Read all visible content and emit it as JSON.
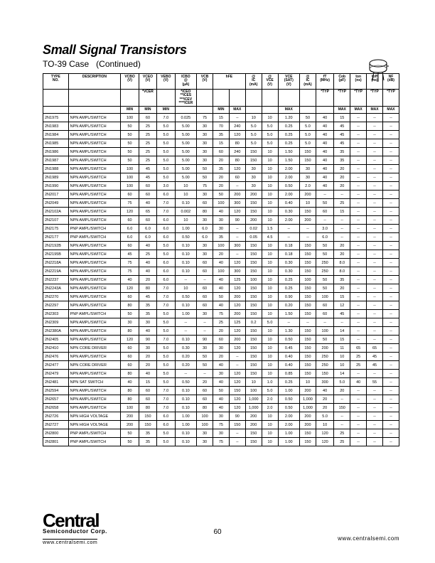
{
  "header": {
    "title": "Small Signal Transistors",
    "subtitle_prefix": "TO-39 Case",
    "subtitle_suffix": "(Continued)"
  },
  "columns_top": [
    "TYPE NO.",
    "DESCRIPTION",
    "VCBO (V)",
    "VCEO (V)",
    "VEBO (V)",
    "ICBO @ (µA)",
    "VCB (V)",
    "hFE",
    "",
    "@ IC (mA)",
    "@ VCE (V)",
    "VCE (SAT) (V)",
    "@ IC (mA)",
    "fT (MHz)",
    "Cob (pF)",
    "ton (ns)",
    "toff (ns)",
    "NF (dB)"
  ],
  "columns_sub": [
    "",
    "",
    "",
    "*VCER",
    "",
    "*ICEO **ICES ***ICEV ****ICER",
    "",
    "",
    "",
    "",
    "",
    "",
    "",
    "*TYP",
    "*TYP",
    "*TYP",
    "*TYP",
    "*TYP"
  ],
  "columns_min": [
    "",
    "",
    "MIN",
    "MIN",
    "MIN",
    "",
    "",
    "MIN",
    "MAX",
    "",
    "",
    "MAX",
    "",
    "",
    "MAX",
    "MAX",
    "MAX",
    "MAX"
  ],
  "rows": [
    [
      "2N1975",
      "NPN AMPL/SWITCH",
      "100",
      "60",
      "7.0",
      "0.025",
      "75",
      "15",
      "--",
      "10",
      "10",
      "1.20",
      "50",
      "40",
      "15",
      "--",
      "--",
      "--"
    ],
    [
      "2N1983",
      "NPN AMPL/SWITCH",
      "50",
      "25",
      "5.0",
      "5.00",
      "30",
      "70",
      "240",
      "5.0",
      "5.0",
      "0.25",
      "5.0",
      "40",
      "45",
      "--",
      "--",
      "--"
    ],
    [
      "2N1984",
      "NPN AMPL/SWITCH",
      "50",
      "25",
      "5.0",
      "5.00",
      "30",
      "35",
      "120",
      "5.0",
      "5.0",
      "0.25",
      "5.0",
      "40",
      "45",
      "--",
      "--",
      "--"
    ],
    [
      "2N1985",
      "NPN AMPL/SWITCH",
      "50",
      "25",
      "5.0",
      "5.00",
      "30",
      "15",
      "80",
      "5.0",
      "5.0",
      "0.25",
      "5.0",
      "40",
      "45",
      "--",
      "--",
      "--"
    ],
    [
      "2N1986",
      "NPN AMPL/SWITCH",
      "50",
      "25",
      "5.0",
      "5.00",
      "30",
      "60",
      "240",
      "150",
      "10",
      "1.50",
      "150",
      "40",
      "35",
      "--",
      "--",
      "--"
    ],
    [
      "2N1987",
      "NPN AMPL/SWITCH",
      "50",
      "25",
      "5.0",
      "5.00",
      "30",
      "20",
      "80",
      "150",
      "10",
      "1.50",
      "150",
      "40",
      "35",
      "--",
      "--",
      "--"
    ],
    [
      "2N1988",
      "NPN AMPL/SWITCH",
      "100",
      "45",
      "5.0",
      "5.00",
      "50",
      "35",
      "120",
      "30",
      "10",
      "2.00",
      "30",
      "40",
      "20",
      "--",
      "--",
      "--"
    ],
    [
      "2N1989",
      "NPN AMPL/SWITCH",
      "100",
      "45",
      "5.0",
      "5.00",
      "50",
      "20",
      "60",
      "30",
      "10",
      "2.00",
      "30",
      "40",
      "20",
      "--",
      "--",
      "--"
    ],
    [
      "2N1990",
      "NPN AMPL/SWITCH",
      "100",
      "60",
      "3.0",
      "10",
      "75",
      "20",
      "--",
      "30",
      "10",
      "0.50",
      "2.0",
      "40",
      "20",
      "--",
      "--",
      "--"
    ],
    [
      "2N2017",
      "NPN AMPL/SWITCH",
      "60",
      "60",
      "6.0",
      "10",
      "30",
      "50",
      "200",
      "200",
      "10",
      "2.00",
      "200",
      "--",
      "--",
      "--",
      "--",
      "--"
    ],
    [
      "2N2049",
      "NPN AMPL/SWITCH",
      "75",
      "40",
      "7.0",
      "0.10",
      "60",
      "100",
      "300",
      "150",
      "10",
      "0.40",
      "10",
      "50",
      "25",
      "--",
      "--",
      "--"
    ],
    [
      "2N2102A",
      "NPN AMPL/SWITCH",
      "120",
      "65",
      "7.0",
      "0.002",
      "80",
      "40",
      "120",
      "150",
      "10",
      "0.30",
      "150",
      "60",
      "15",
      "--",
      "--",
      "--"
    ],
    [
      "2N2107",
      "NPN AMPL/SWITCH",
      "60",
      "60",
      "6.0",
      "10",
      "30",
      "30",
      "90",
      "200",
      "10",
      "2.00",
      "200",
      "--",
      "--",
      "--",
      "--",
      "--"
    ],
    [
      "2N2175",
      "PNP AMPL/SWITCH",
      "6.0",
      "6.0",
      "6.0",
      "1.00",
      "6.0",
      "30",
      "--",
      "0.02",
      "1.5",
      "--",
      "--",
      "3.0",
      "--",
      "--",
      "--",
      "--"
    ],
    [
      "2N2177",
      "PNP AMPL/SWITCH",
      "6.0",
      "6.0",
      "6.0",
      "0.50",
      "6.0",
      "35",
      "--",
      "0.05",
      "4.5",
      "--",
      "--",
      "6.0",
      "--",
      "--",
      "--",
      "--"
    ],
    [
      "2N2192B",
      "NPN AMPL/SWITCH",
      "60",
      "40",
      "5.0",
      "0.10",
      "30",
      "100",
      "300",
      "150",
      "10",
      "0.18",
      "150",
      "50",
      "20",
      "--",
      "--",
      "--"
    ],
    [
      "2N2195B",
      "NPN AMPL/SWITCH",
      "45",
      "25",
      "5.0",
      "0.10",
      "30",
      "20",
      "--",
      "150",
      "10",
      "0.18",
      "150",
      "50",
      "20",
      "--",
      "--",
      "--"
    ],
    [
      "2N2218A",
      "NPN AMPL/SWITCH",
      "75",
      "40",
      "6.0",
      "0.10",
      "60",
      "40",
      "120",
      "150",
      "10",
      "0.30",
      "150",
      "250",
      "8.0",
      "--",
      "--",
      "--"
    ],
    [
      "2N2219A",
      "NPN AMPL/SWITCH",
      "75",
      "40",
      "6.0",
      "0.10",
      "60",
      "100",
      "300",
      "150",
      "10",
      "0.30",
      "150",
      "250",
      "8.0",
      "--",
      "--",
      "--"
    ],
    [
      "2N2237",
      "NPN AMPL/SWITCH",
      "40",
      "20",
      "6.0",
      "--",
      "--",
      "40",
      "125",
      "100",
      "10",
      "0.25",
      "100",
      "50",
      "35",
      "--",
      "--",
      "--"
    ],
    [
      "2N2243A",
      "NPN AMPL/SWITCH",
      "120",
      "80",
      "7.0",
      "10",
      "60",
      "40",
      "120",
      "150",
      "10",
      "0.25",
      "150",
      "50",
      "20",
      "--",
      "--",
      "--"
    ],
    [
      "2N2270",
      "NPN AMPL/SWITCH",
      "60",
      "45",
      "7.0",
      "0.50",
      "60",
      "50",
      "200",
      "150",
      "10",
      "0.90",
      "150",
      "100",
      "15",
      "--",
      "--",
      "--"
    ],
    [
      "2N2297",
      "NPN AMPL/SWITCH",
      "80",
      "35",
      "7.0",
      "0.10",
      "60",
      "40",
      "120",
      "150",
      "10",
      "0.20",
      "150",
      "60",
      "12",
      "--",
      "--",
      "--"
    ],
    [
      "2N2303",
      "PNP AMPL/SWITCH",
      "50",
      "35",
      "5.0",
      "1.00",
      "30",
      "75",
      "200",
      "150",
      "10",
      "1.50",
      "150",
      "60",
      "45",
      "--",
      "--",
      "--"
    ],
    [
      "2N2309",
      "NPN AMPL/SWITCH",
      "30",
      "30",
      "5.0",
      "--",
      "--",
      "25",
      "125",
      "0.2",
      "5.0",
      "--",
      "--",
      "--",
      "--",
      "--",
      "--",
      "--"
    ],
    [
      "2N2380A",
      "NPN AMPL/SWITCH",
      "80",
      "40",
      "5.0",
      "--",
      "--",
      "20",
      "120",
      "150",
      "10",
      "1.30",
      "150",
      "100",
      "14",
      "--",
      "--",
      "--"
    ],
    [
      "2N2405",
      "NPN AMPL/SWITCH",
      "120",
      "90",
      "7.0",
      "0.10",
      "90",
      "60",
      "200",
      "150",
      "10",
      "0.50",
      "150",
      "50",
      "15",
      "--",
      "--",
      "--"
    ],
    [
      "2N2410",
      "NPN CORE DRIVER",
      "60",
      "30",
      "5.0",
      "0.30",
      "30",
      "30",
      "120",
      "150",
      "10",
      "0.45",
      "150",
      "200",
      "11",
      "65",
      "65",
      "--"
    ],
    [
      "2N2476",
      "NPN AMPL/SWITCH",
      "60",
      "20",
      "5.0",
      "0.20",
      "50",
      "20",
      "--",
      "150",
      "10",
      "0.40",
      "150",
      "250",
      "10",
      "25",
      "45",
      "--"
    ],
    [
      "2N2477",
      "NPN CORE DRIVER",
      "60",
      "20",
      "5.0",
      "0.20",
      "50",
      "40",
      "--",
      "150",
      "10",
      "0.40",
      "150",
      "250",
      "10",
      "25",
      "45",
      "--"
    ],
    [
      "2N2479",
      "NPN AMPL/SWITCH",
      "80",
      "40",
      "5.0",
      "--",
      "--",
      "30",
      "120",
      "150",
      "10",
      "0.85",
      "150",
      "150",
      "14",
      "--",
      "--",
      "--"
    ],
    [
      "2N2481",
      "NPN SAT SWITCH",
      "40",
      "15",
      "5.0",
      "0.50",
      "20",
      "40",
      "120",
      "10",
      "1.0",
      "0.25",
      "10",
      "300",
      "5.0",
      "40",
      "55",
      "--"
    ],
    [
      "2N2594",
      "NPN AMPL/SWITCH",
      "80",
      "60",
      "7.0",
      "0.10",
      "60",
      "50",
      "150",
      "100",
      "5.0",
      "1.00",
      "200",
      "40",
      "20",
      "--",
      "--",
      "--"
    ],
    [
      "2N2657",
      "NPN AMPL/SWITCH",
      "80",
      "60",
      "7.0",
      "0.10",
      "60",
      "40",
      "120",
      "1,000",
      "2.0",
      "0.50",
      "1,000",
      "20",
      "--",
      "--",
      "--",
      "--"
    ],
    [
      "2N2658",
      "NPN AMPL/SWITCH",
      "100",
      "80",
      "7.0",
      "0.10",
      "80",
      "40",
      "120",
      "1,000",
      "2.0",
      "0.50",
      "1,000",
      "20",
      "150",
      "--",
      "--",
      "--"
    ],
    [
      "2N2726",
      "NPN HIGH VOLTAGE",
      "200",
      "150",
      "6.0",
      "1.00",
      "100",
      "30",
      "90",
      "200",
      "10",
      "2.00",
      "200",
      "5.0",
      "--",
      "--",
      "--",
      "--"
    ],
    [
      "2N2727",
      "NPN HIGH VOLTAGE",
      "200",
      "150",
      "6.0",
      "1.00",
      "100",
      "75",
      "150",
      "200",
      "10",
      "2.00",
      "200",
      "10",
      "--",
      "--",
      "--",
      "--"
    ],
    [
      "2N2800",
      "PNP AMPL/SWITCH",
      "50",
      "35",
      "5.0",
      "0.10",
      "30",
      "30",
      "--",
      "150",
      "10",
      "1.00",
      "150",
      "120",
      "25",
      "--",
      "--",
      "--"
    ],
    [
      "2N2801",
      "PNP AMPL/SWITCH",
      "50",
      "35",
      "5.0",
      "0.10",
      "30",
      "75",
      "--",
      "150",
      "10",
      "1.00",
      "150",
      "120",
      "25",
      "--",
      "--",
      "--"
    ]
  ],
  "footer": {
    "brand": "Central",
    "brand_sub": "Semiconductor Corp.",
    "brand_url": "www.centralsemi.com",
    "page_no": "60",
    "site": "www.centralsemi.com"
  }
}
